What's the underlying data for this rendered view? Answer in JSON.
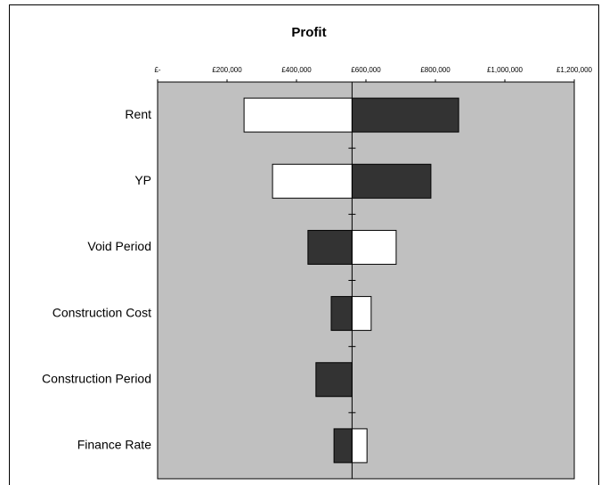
{
  "chart_data": {
    "type": "tornado",
    "title": "Profit",
    "categories": [
      "Rent",
      "YP",
      "Void Period",
      "Construction Cost",
      "Construction Period",
      "Finance Rate"
    ],
    "base": 560000,
    "series": [
      {
        "color": "#333333",
        "values": [
          867000,
          787000,
          433000,
          500000,
          456000,
          508000
        ]
      },
      {
        "color": "#ffffff",
        "values": [
          249000,
          331000,
          687000,
          615000,
          null,
          603000
        ]
      }
    ],
    "xlim": [
      0,
      1200000
    ],
    "xticks": [
      {
        "value": 0,
        "label": "£-"
      },
      {
        "value": 200000,
        "label": "£200,000"
      },
      {
        "value": 400000,
        "label": "£400,000"
      },
      {
        "value": 600000,
        "label": "£600,000"
      },
      {
        "value": 800000,
        "label": "£800,000"
      },
      {
        "value": 1000000,
        "label": "£1,000,000"
      },
      {
        "value": 1200000,
        "label": "£1,200,000"
      }
    ],
    "plot_background": "#c0c0c0"
  }
}
